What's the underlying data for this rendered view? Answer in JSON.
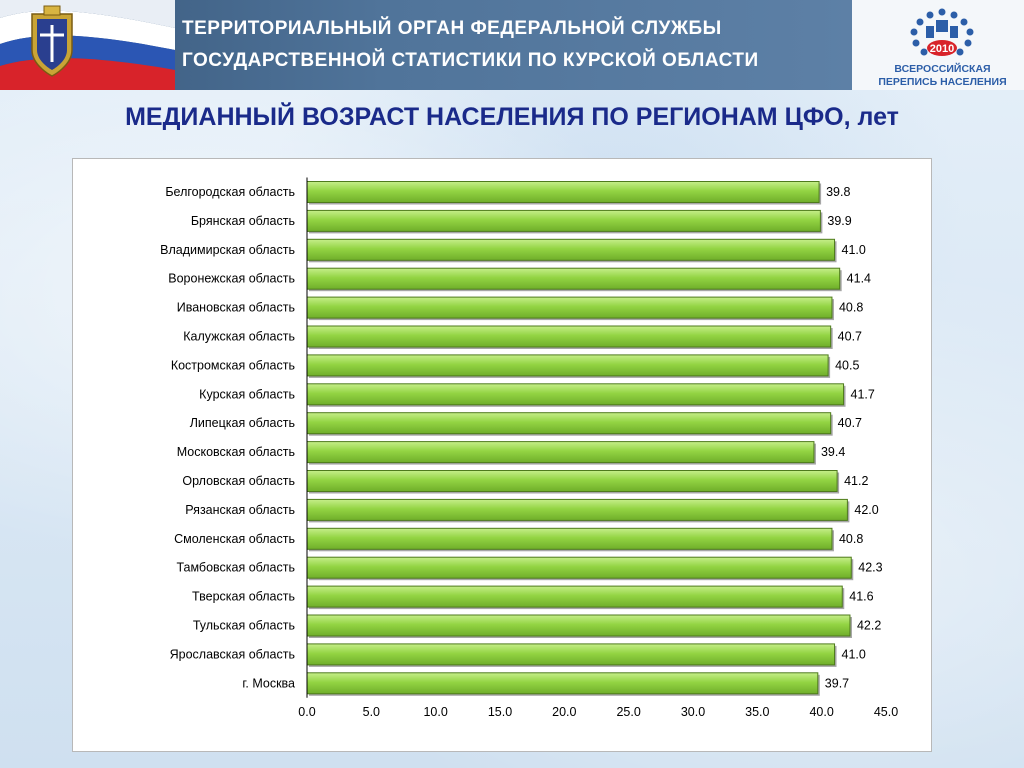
{
  "header": {
    "line1": "ТЕРРИТОРИАЛЬНЫЙ ОРГАН ФЕДЕРАЛЬНОЙ СЛУЖБЫ",
    "line2": "ГОСУДАРСТВЕННОЙ СТАТИСТИКИ ПО КУРСКОЙ ОБЛАСТИ",
    "logo_year": "2010",
    "logo_line1": "ВСЕРОССИЙСКАЯ",
    "logo_line2": "ПЕРЕПИСЬ НАСЕЛЕНИЯ"
  },
  "colors": {
    "bar_fill": "#8fd13f",
    "bar_edge": "#4e7a1c",
    "title": "#1a2a8a",
    "header": "#4a6d93"
  },
  "chart_data": {
    "type": "bar",
    "orientation": "horizontal",
    "title": "МЕДИАННЫЙ ВОЗРАСТ НАСЕЛЕНИЯ ПО РЕГИОНАМ ЦФО, лет",
    "categories": [
      "Белгородская область",
      "Брянская область",
      "Владимирская область",
      "Воронежская область",
      "Ивановская область",
      "Калужская область",
      "Костромская область",
      "Курская область",
      "Липецкая область",
      "Московская область",
      "Орловская область",
      "Рязанская область",
      "Смоленская область",
      "Тамбовская область",
      "Тверская область",
      "Тульская область",
      "Ярославская область",
      "г. Москва"
    ],
    "values": [
      39.8,
      39.9,
      41.0,
      41.4,
      40.8,
      40.7,
      40.5,
      41.7,
      40.7,
      39.4,
      41.2,
      42.0,
      40.8,
      42.3,
      41.6,
      42.2,
      41.0,
      39.7
    ],
    "value_labels": [
      "39.8",
      "39.9",
      "41.0",
      "41.4",
      "40.8",
      "40.7",
      "40.5",
      "41.7",
      "40.7",
      "39.4",
      "41.2",
      "42.0",
      "40.8",
      "42.3",
      "41.6",
      "42.2",
      "41.0",
      "39.7"
    ],
    "xlim": [
      0,
      45
    ],
    "x_ticks": [
      "0.0",
      "5.0",
      "10.0",
      "15.0",
      "20.0",
      "25.0",
      "30.0",
      "35.0",
      "40.0",
      "45.0"
    ],
    "grid": false,
    "legend": "none"
  }
}
